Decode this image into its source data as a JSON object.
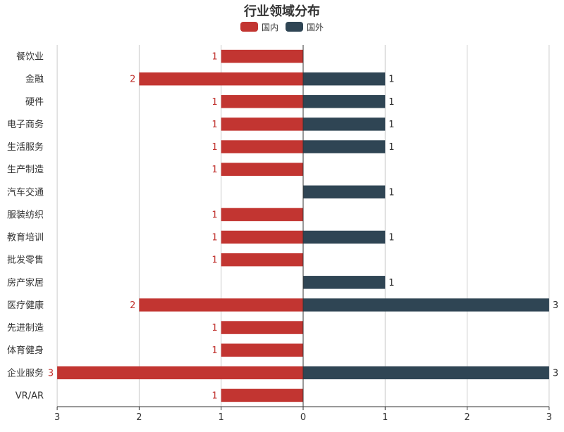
{
  "chart_data": {
    "type": "bar",
    "orientation": "horizontal",
    "layout": "butterfly",
    "title": "行业领域分布",
    "categories": [
      "餐饮业",
      "金融",
      "硬件",
      "电子商务",
      "生活服务",
      "生产制造",
      "汽车交通",
      "服装纺织",
      "教育培训",
      "批发零售",
      "房产家居",
      "医疗健康",
      "先进制造",
      "体育健身",
      "企业服务",
      "VR/AR"
    ],
    "series": [
      {
        "name": "国内",
        "color": "#c23531",
        "direction": "left",
        "values": [
          1,
          2,
          1,
          1,
          1,
          1,
          0,
          1,
          1,
          1,
          0,
          2,
          1,
          1,
          3,
          1
        ]
      },
      {
        "name": "国外",
        "color": "#2f4554",
        "direction": "right",
        "values": [
          0,
          1,
          1,
          1,
          1,
          0,
          1,
          0,
          1,
          0,
          1,
          3,
          0,
          0,
          3,
          0
        ]
      }
    ],
    "xlim_left": [
      0,
      3
    ],
    "xlim_right": [
      0,
      3
    ],
    "x_ticks": [
      "3",
      "2",
      "1",
      "0",
      "1",
      "2",
      "3"
    ],
    "grid": true,
    "legend_position": "top-center",
    "data_labels": true
  }
}
